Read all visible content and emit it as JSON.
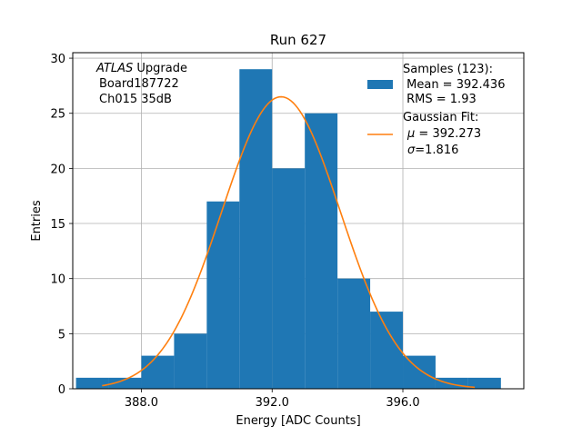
{
  "chart_data": {
    "type": "bar",
    "title": "Run 627",
    "xlabel": "Energy [ADC Counts]",
    "ylabel": "Entries",
    "xlim": [
      385.9,
      399.7
    ],
    "ylim": [
      0,
      30.5
    ],
    "xticks": [
      388.0,
      392.0,
      396.0
    ],
    "xtick_labels": [
      "388.0",
      "392.0",
      "396.0"
    ],
    "yticks": [
      0,
      5,
      10,
      15,
      20,
      25,
      30
    ],
    "ytick_labels": [
      "0",
      "5",
      "10",
      "15",
      "20",
      "25",
      "30"
    ],
    "grid": true,
    "histogram": {
      "name": "Samples (123):",
      "color": "#1f77b4",
      "bins": [
        {
          "x0": 386.0,
          "x1": 387.0,
          "count": 1
        },
        {
          "x0": 387.0,
          "x1": 388.0,
          "count": 1
        },
        {
          "x0": 388.0,
          "x1": 389.0,
          "count": 3
        },
        {
          "x0": 389.0,
          "x1": 390.0,
          "count": 5
        },
        {
          "x0": 390.0,
          "x1": 391.0,
          "count": 17
        },
        {
          "x0": 391.0,
          "x1": 392.0,
          "count": 29
        },
        {
          "x0": 392.0,
          "x1": 393.0,
          "count": 20
        },
        {
          "x0": 393.0,
          "x1": 394.0,
          "count": 25
        },
        {
          "x0": 394.0,
          "x1": 395.0,
          "count": 10
        },
        {
          "x0": 395.0,
          "x1": 396.0,
          "count": 7
        },
        {
          "x0": 396.0,
          "x1": 397.0,
          "count": 3
        },
        {
          "x0": 397.0,
          "x1": 398.0,
          "count": 1
        },
        {
          "x0": 398.0,
          "x1": 399.0,
          "count": 1
        }
      ]
    },
    "fit": {
      "color": "#ff7f0e",
      "mu": 392.273,
      "sigma": 1.816,
      "amplitude": 26.5,
      "x_range": [
        386.8,
        398.2
      ]
    },
    "info_lines": [
      "ATLAS Upgrade",
      "Board187722",
      "Ch015 35dB"
    ],
    "info_italic_word": "ATLAS",
    "info_rest": " Upgrade",
    "legend": {
      "samples_lines": [
        "Samples (123):",
        " Mean = 392.436",
        " RMS = 1.93"
      ],
      "fit_title": "Gaussian Fit:",
      "fit_mu_symbol": "μ",
      "fit_mu_value": " = 392.273",
      "fit_sigma_symbol": "σ",
      "fit_sigma_value": "=1.816"
    }
  }
}
